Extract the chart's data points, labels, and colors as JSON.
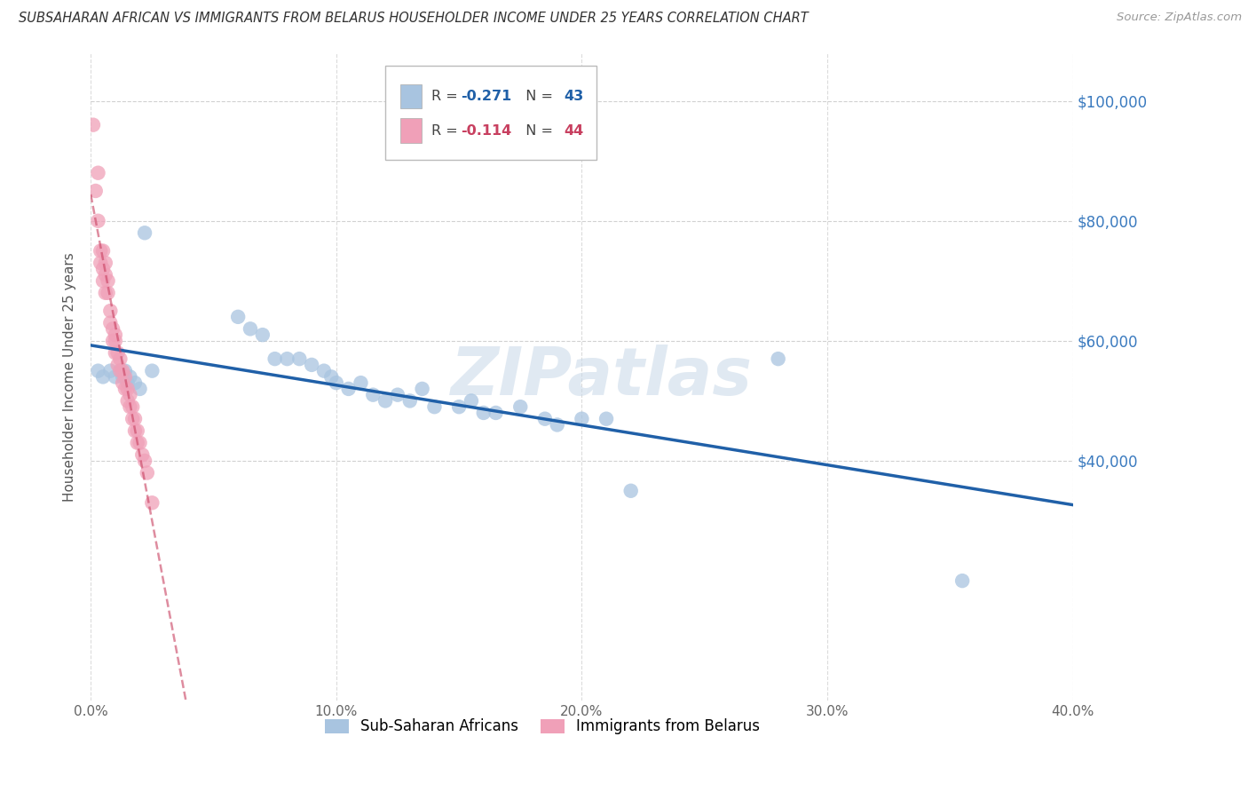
{
  "title": "SUBSAHARAN AFRICAN VS IMMIGRANTS FROM BELARUS HOUSEHOLDER INCOME UNDER 25 YEARS CORRELATION CHART",
  "source": "Source: ZipAtlas.com",
  "ylabel": "Householder Income Under 25 years",
  "xlim": [
    0.0,
    0.4
  ],
  "ylim": [
    0,
    100000
  ],
  "ylim_display_max": 108000,
  "xtick_labels": [
    "0.0%",
    "10.0%",
    "20.0%",
    "30.0%",
    "40.0%"
  ],
  "xtick_values": [
    0.0,
    0.1,
    0.2,
    0.3,
    0.4
  ],
  "ytick_labels": [
    "$40,000",
    "$60,000",
    "$80,000",
    "$100,000"
  ],
  "ytick_values": [
    40000,
    60000,
    80000,
    100000
  ],
  "legend_blue_label": "Sub-Saharan Africans",
  "legend_pink_label": "Immigrants from Belarus",
  "watermark": "ZIPatlas",
  "blue_color": "#a8c4e0",
  "blue_line_color": "#2060a8",
  "pink_color": "#f0a0b8",
  "pink_line_color": "#c84060",
  "blue_scatter_x": [
    0.003,
    0.005,
    0.008,
    0.01,
    0.012,
    0.013,
    0.014,
    0.015,
    0.016,
    0.018,
    0.02,
    0.022,
    0.025,
    0.06,
    0.065,
    0.07,
    0.075,
    0.08,
    0.085,
    0.09,
    0.095,
    0.098,
    0.1,
    0.105,
    0.11,
    0.115,
    0.12,
    0.125,
    0.13,
    0.135,
    0.14,
    0.15,
    0.155,
    0.16,
    0.165,
    0.175,
    0.185,
    0.19,
    0.2,
    0.21,
    0.22,
    0.28,
    0.355
  ],
  "blue_scatter_y": [
    55000,
    54000,
    55000,
    54000,
    55000,
    54000,
    55000,
    53000,
    54000,
    53000,
    52000,
    78000,
    55000,
    64000,
    62000,
    61000,
    57000,
    57000,
    57000,
    56000,
    55000,
    54000,
    53000,
    52000,
    53000,
    51000,
    50000,
    51000,
    50000,
    52000,
    49000,
    49000,
    50000,
    48000,
    48000,
    49000,
    47000,
    46000,
    47000,
    47000,
    35000,
    57000,
    20000
  ],
  "pink_scatter_x": [
    0.001,
    0.002,
    0.003,
    0.003,
    0.004,
    0.004,
    0.005,
    0.005,
    0.005,
    0.006,
    0.006,
    0.006,
    0.007,
    0.007,
    0.008,
    0.008,
    0.009,
    0.009,
    0.01,
    0.01,
    0.01,
    0.011,
    0.011,
    0.012,
    0.012,
    0.013,
    0.013,
    0.014,
    0.014,
    0.015,
    0.015,
    0.016,
    0.016,
    0.017,
    0.017,
    0.018,
    0.018,
    0.019,
    0.019,
    0.02,
    0.021,
    0.022,
    0.023,
    0.025
  ],
  "pink_scatter_y": [
    96000,
    85000,
    88000,
    80000,
    75000,
    73000,
    75000,
    72000,
    70000,
    73000,
    71000,
    68000,
    70000,
    68000,
    65000,
    63000,
    62000,
    60000,
    61000,
    60000,
    58000,
    58000,
    56000,
    57000,
    55000,
    55000,
    53000,
    54000,
    52000,
    52000,
    50000,
    51000,
    49000,
    49000,
    47000,
    47000,
    45000,
    45000,
    43000,
    43000,
    41000,
    40000,
    38000,
    33000
  ]
}
